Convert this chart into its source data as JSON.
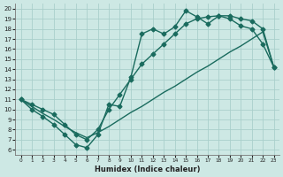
{
  "xlabel": "Humidex (Indice chaleur)",
  "xlim": [
    -0.5,
    23.5
  ],
  "ylim": [
    5.5,
    20.5
  ],
  "xticks": [
    0,
    1,
    2,
    3,
    4,
    5,
    6,
    7,
    8,
    9,
    10,
    11,
    12,
    13,
    14,
    15,
    16,
    17,
    18,
    19,
    20,
    21,
    22,
    23
  ],
  "yticks": [
    6,
    7,
    8,
    9,
    10,
    11,
    12,
    13,
    14,
    15,
    16,
    17,
    18,
    19,
    20
  ],
  "bg_color": "#cde8e4",
  "grid_color": "#aacfcb",
  "line_color": "#1a6b5e",
  "curve_wiggly_x": [
    0,
    1,
    2,
    3,
    4,
    5,
    6,
    7,
    8,
    9,
    10,
    11,
    12,
    13,
    14,
    15,
    16,
    17,
    18,
    19,
    20,
    21,
    22,
    23
  ],
  "curve_wiggly_y": [
    11.0,
    10.0,
    9.3,
    8.5,
    7.5,
    6.5,
    6.2,
    7.5,
    10.5,
    10.3,
    13.2,
    17.5,
    18.0,
    17.5,
    18.2,
    19.8,
    19.2,
    18.5,
    19.3,
    19.0,
    18.3,
    18.0,
    16.5,
    14.2
  ],
  "curve_upper_x": [
    0,
    1,
    2,
    3,
    4,
    5,
    6,
    7,
    8,
    9,
    10,
    11,
    12,
    13,
    14,
    15,
    16,
    17,
    18,
    19,
    20,
    21,
    22,
    23
  ],
  "curve_upper_y": [
    11.0,
    10.5,
    10.0,
    9.5,
    8.5,
    7.5,
    7.0,
    8.0,
    10.0,
    11.5,
    13.0,
    14.5,
    15.5,
    16.5,
    17.5,
    18.5,
    19.0,
    19.2,
    19.3,
    19.3,
    19.0,
    18.8,
    18.0,
    14.2
  ],
  "curve_diag_x": [
    0,
    1,
    2,
    3,
    4,
    5,
    6,
    7,
    8,
    9,
    10,
    11,
    12,
    13,
    14,
    15,
    16,
    17,
    18,
    19,
    20,
    21,
    22,
    23
  ],
  "curve_diag_y": [
    11.0,
    10.3,
    9.6,
    9.0,
    8.3,
    7.7,
    7.2,
    7.7,
    8.3,
    9.0,
    9.7,
    10.3,
    11.0,
    11.7,
    12.3,
    13.0,
    13.7,
    14.3,
    15.0,
    15.7,
    16.3,
    17.0,
    17.7,
    14.2
  ],
  "markersize": 2.5,
  "linewidth": 1.0
}
